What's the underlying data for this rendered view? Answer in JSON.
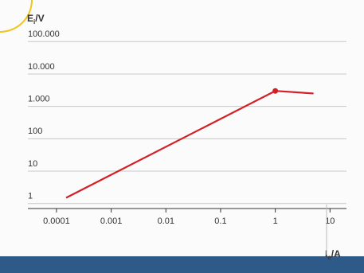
{
  "chart_data": {
    "type": "line",
    "ylabel": "E",
    "ylabel_sub": "i",
    "ylabel_unit": "/V",
    "xlabel": "I",
    "xlabel_sub": "e",
    "xlabel_unit": "/A",
    "xscale": "log",
    "yscale": "log",
    "xlim": [
      3e-05,
      20
    ],
    "ylim": [
      0.7,
      200000
    ],
    "xticks": [
      0.0001,
      0.001,
      0.01,
      0.1,
      1,
      10
    ],
    "yticks": [
      1,
      10,
      100,
      {
        "value": 1000,
        "label": "1.000"
      },
      {
        "value": 10000,
        "label": "10.000"
      },
      {
        "value": 100000,
        "label": "100.000"
      }
    ],
    "grid": true,
    "series": [
      {
        "color": "#d32027",
        "x": [
          0.00015,
          1,
          5
        ],
        "values": [
          1.5,
          3000,
          2500
        ],
        "markers": [
          false,
          true,
          false
        ]
      }
    ]
  }
}
